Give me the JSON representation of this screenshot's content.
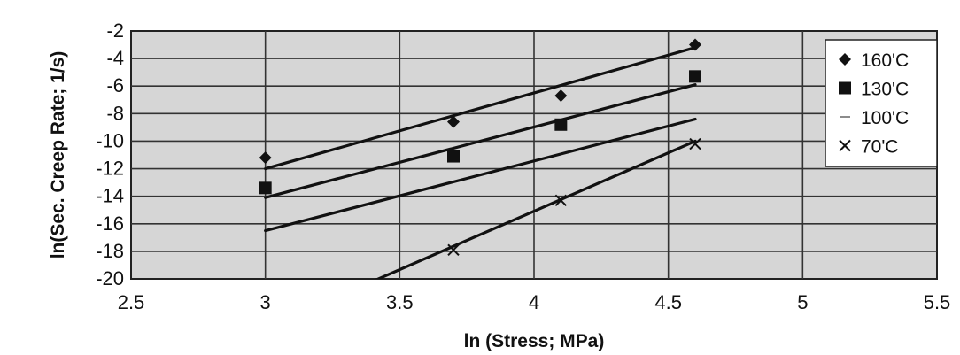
{
  "chart_data": {
    "type": "scatter",
    "title": "",
    "xlabel": "ln (Stress; MPa)",
    "ylabel": "ln(Sec. Creep Rate; 1/s)",
    "xlim": [
      2.5,
      5.5
    ],
    "ylim": [
      -20,
      -2
    ],
    "xticks": [
      "2.5",
      "3",
      "3.5",
      "4",
      "4.5",
      "5",
      "5.5"
    ],
    "yticks": [
      "-2",
      "-4",
      "-6",
      "-8",
      "-10",
      "-12",
      "-14",
      "-16",
      "-18",
      "-20"
    ],
    "grid": true,
    "legend_position": "right",
    "series": [
      {
        "name": "160'C",
        "marker": "diamond",
        "color": "#111111",
        "x": [
          3.0,
          3.7,
          4.1,
          4.6
        ],
        "y": [
          -11.2,
          -8.6,
          -6.7,
          -3.0
        ],
        "trend": {
          "x": [
            3.0,
            4.6
          ],
          "y": [
            -12.0,
            -3.2
          ]
        }
      },
      {
        "name": "130'C",
        "marker": "square",
        "color": "#111111",
        "x": [
          3.0,
          3.7,
          4.1,
          4.6
        ],
        "y": [
          -13.4,
          -11.1,
          -8.8,
          -5.3
        ],
        "trend": {
          "x": [
            3.0,
            4.6
          ],
          "y": [
            -14.1,
            -5.9
          ]
        }
      },
      {
        "name": "100'C",
        "marker": "dash",
        "color": "#111111",
        "x": [],
        "y": [],
        "trend": {
          "x": [
            3.0,
            4.6
          ],
          "y": [
            -16.5,
            -8.4
          ]
        }
      },
      {
        "name": "70'C",
        "marker": "x",
        "color": "#111111",
        "x": [
          3.7,
          4.1,
          4.6
        ],
        "y": [
          -17.9,
          -14.3,
          -10.2
        ],
        "trend": {
          "x": [
            3.35,
            4.6
          ],
          "y": [
            -20.6,
            -10.0
          ]
        }
      }
    ]
  }
}
